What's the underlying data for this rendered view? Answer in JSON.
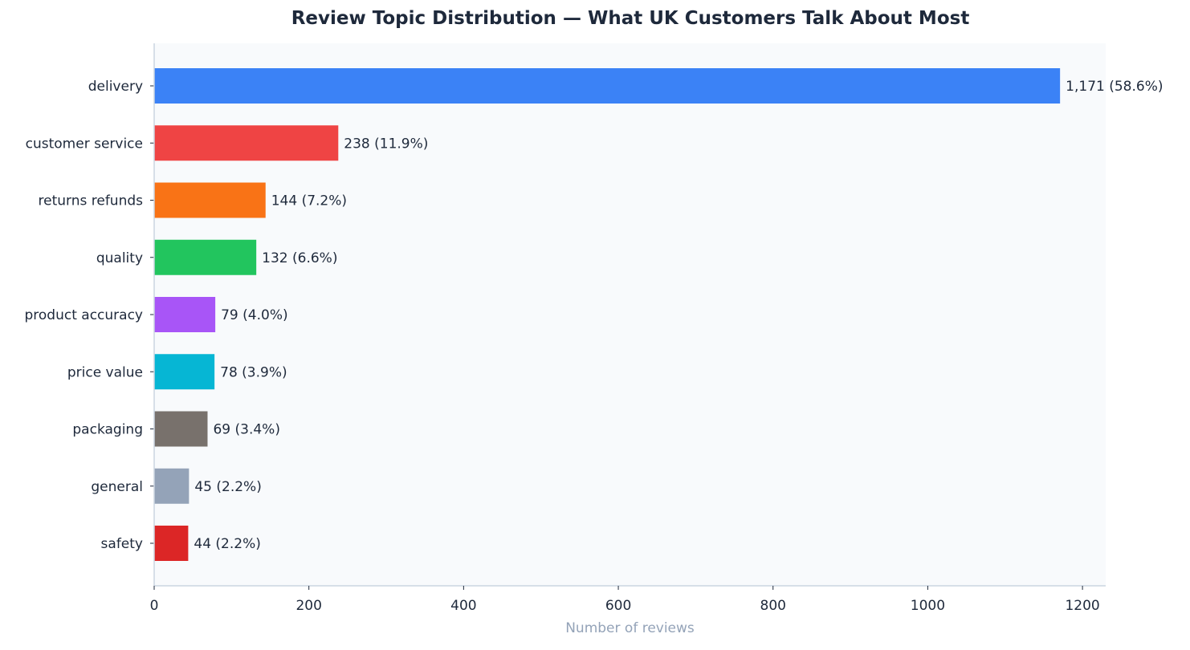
{
  "chart_data": {
    "type": "bar",
    "orientation": "horizontal",
    "title": "Review Topic Distribution — What UK Customers Talk About Most",
    "xlabel": "Number of reviews",
    "ylabel": "",
    "xlim": [
      0,
      1230
    ],
    "xticks": [
      0,
      200,
      400,
      600,
      800,
      1000,
      1200
    ],
    "grid": false,
    "categories": [
      "delivery",
      "customer service",
      "returns refunds",
      "quality",
      "product accuracy",
      "price value",
      "packaging",
      "general",
      "safety"
    ],
    "values": [
      1171,
      238,
      144,
      132,
      79,
      78,
      69,
      45,
      44
    ],
    "value_labels": [
      "1,171  (58.6%)",
      "238  (11.9%)",
      "144  (7.2%)",
      "132  (6.6%)",
      "79  (4.0%)",
      "78  (3.9%)",
      "69  (3.4%)",
      "45  (2.2%)",
      "44  (2.2%)"
    ],
    "colors": [
      "#3b82f6",
      "#ef4444",
      "#f97316",
      "#22c55e",
      "#a855f7",
      "#06b6d4",
      "#78716c",
      "#94a3b8",
      "#dc2626"
    ],
    "plot_background": "#f8fafc",
    "axis_color": "#cbd5e1",
    "text_color": "#1e293b",
    "xlabel_color": "#94a3b8"
  }
}
